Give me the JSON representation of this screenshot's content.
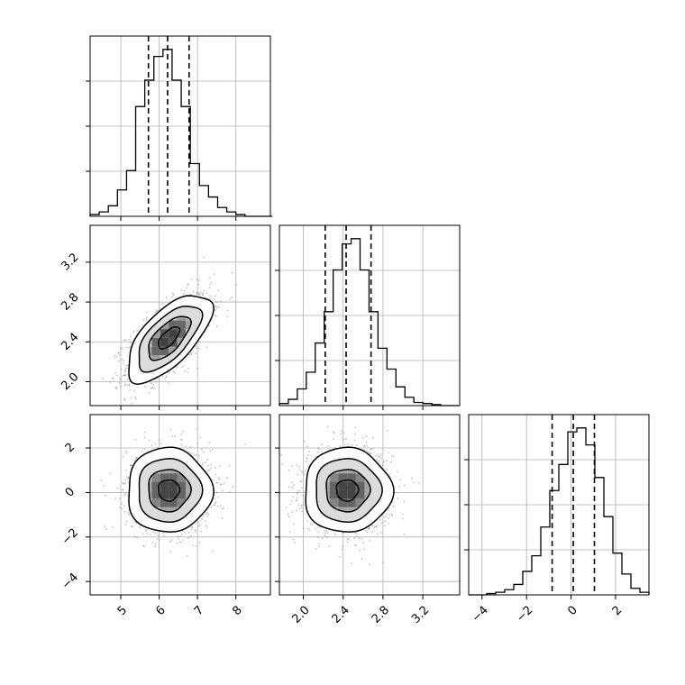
{
  "chart_data": {
    "type": "corner",
    "description_free": true,
    "grid": true,
    "params": [
      {
        "range": [
          4.2,
          8.9
        ],
        "ticks": [
          5,
          6,
          7,
          8
        ],
        "tick_labels": [
          "5",
          "6",
          "7",
          "8"
        ],
        "mean": 6.25,
        "sd": 0.55
      },
      {
        "range": [
          1.76,
          3.57
        ],
        "ticks": [
          2.0,
          2.4,
          2.8,
          3.2
        ],
        "tick_labels": [
          "2.0",
          "2.4",
          "2.8",
          "3.2"
        ],
        "mean": 2.44,
        "sd": 0.22
      },
      {
        "range": [
          -4.6,
          3.5
        ],
        "ticks": [
          -4,
          -2,
          0,
          2
        ],
        "tick_labels": [
          "−4",
          "−2",
          "0",
          "2"
        ],
        "mean": 0.1,
        "sd": 0.95
      }
    ],
    "correlations": {
      "1_0": 0.65,
      "2_0": 0.0,
      "2_1": 0.0
    },
    "quantile_lines": [
      [
        5.72,
        6.22,
        6.78
      ],
      [
        2.22,
        2.43,
        2.68
      ],
      [
        -0.85,
        0.1,
        1.05
      ]
    ],
    "histograms": [
      {
        "bin_edges": [
          4.2,
          4.437,
          4.675,
          4.912,
          5.15,
          5.387,
          5.625,
          5.862,
          6.1,
          6.337,
          6.575,
          6.812,
          7.05,
          7.287,
          7.525,
          7.762,
          8.0,
          8.237,
          8.475,
          8.712,
          8.95
        ],
        "counts": [
          2,
          5,
          12,
          30,
          52,
          125,
          155,
          182,
          190,
          155,
          125,
          60,
          35,
          22,
          10,
          5,
          2,
          0,
          0,
          0
        ]
      },
      {
        "bin_edges": [
          1.76,
          1.85,
          1.94,
          2.03,
          2.12,
          2.21,
          2.3,
          2.39,
          2.48,
          2.57,
          2.66,
          2.75,
          2.84,
          2.93,
          3.02,
          3.11,
          3.2,
          3.29,
          3.38,
          3.47,
          3.56
        ],
        "counts": [
          2,
          6,
          16,
          32,
          60,
          90,
          130,
          155,
          160,
          130,
          90,
          55,
          35,
          18,
          8,
          3,
          2,
          1,
          0,
          0
        ]
      },
      {
        "bin_edges": [
          -4.6,
          -4.195,
          -3.79,
          -3.385,
          -2.98,
          -2.575,
          -2.17,
          -1.765,
          -1.36,
          -0.955,
          -0.55,
          -0.145,
          0.26,
          0.665,
          1.07,
          1.475,
          1.88,
          2.285,
          2.69,
          3.095,
          3.5
        ],
        "counts": [
          0,
          0,
          1,
          2,
          4,
          8,
          18,
          30,
          52,
          80,
          100,
          125,
          128,
          115,
          90,
          60,
          32,
          16,
          5,
          2
        ]
      }
    ]
  }
}
